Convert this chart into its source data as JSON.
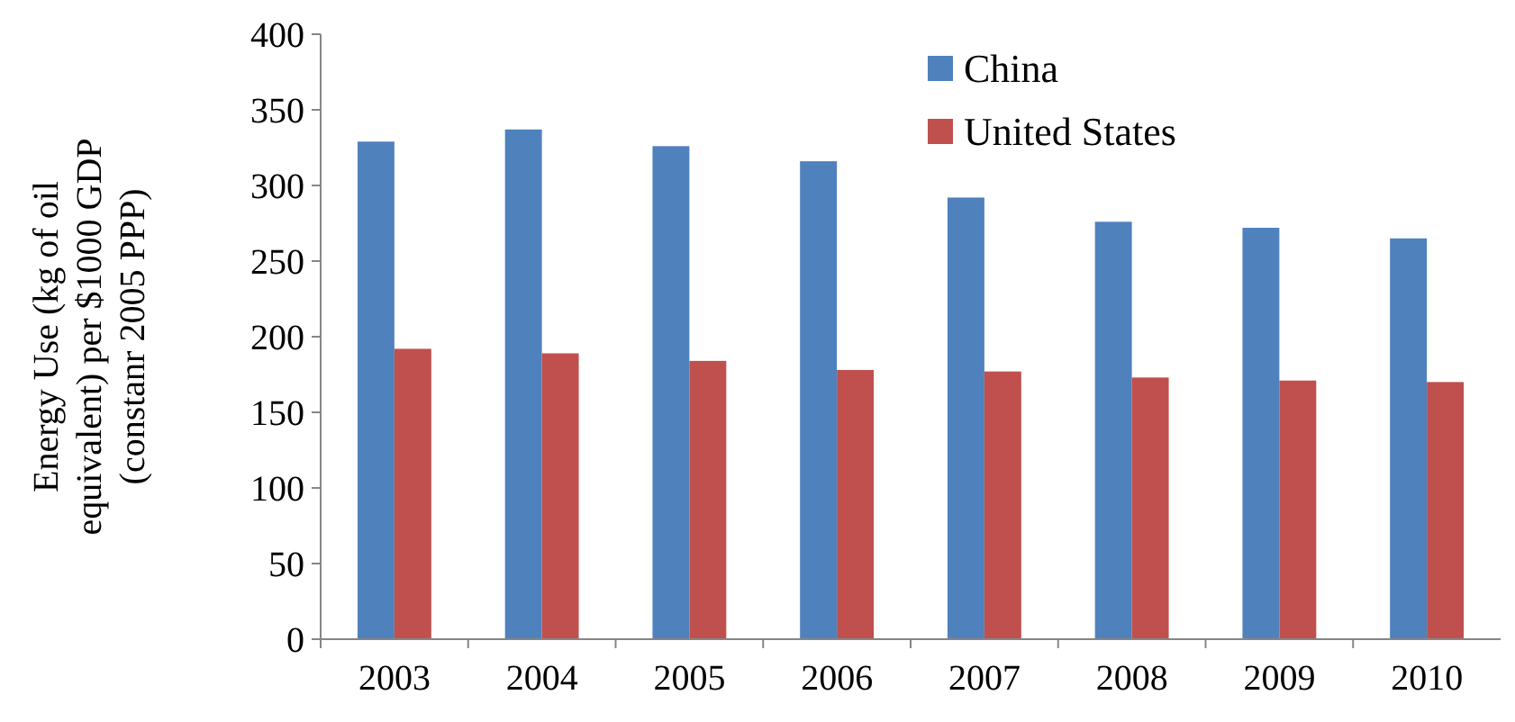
{
  "chart_data": {
    "type": "bar",
    "ylabel": "Energy Use (kg of oil equivalent) per $1000 GDP (constanr 2005 PPP)",
    "categories": [
      "2003",
      "2004",
      "2005",
      "2006",
      "2007",
      "2008",
      "2009",
      "2010"
    ],
    "series": [
      {
        "name": "China",
        "color": "#4f81bd",
        "values": [
          329,
          337,
          326,
          316,
          292,
          276,
          272,
          265
        ]
      },
      {
        "name": "United States",
        "color": "#c0504d",
        "values": [
          192,
          189,
          184,
          178,
          177,
          173,
          171,
          170
        ]
      }
    ],
    "ylim": [
      0,
      400
    ],
    "yticks": [
      0,
      50,
      100,
      150,
      200,
      250,
      300,
      350,
      400
    ],
    "grid": false,
    "legend": "top"
  }
}
